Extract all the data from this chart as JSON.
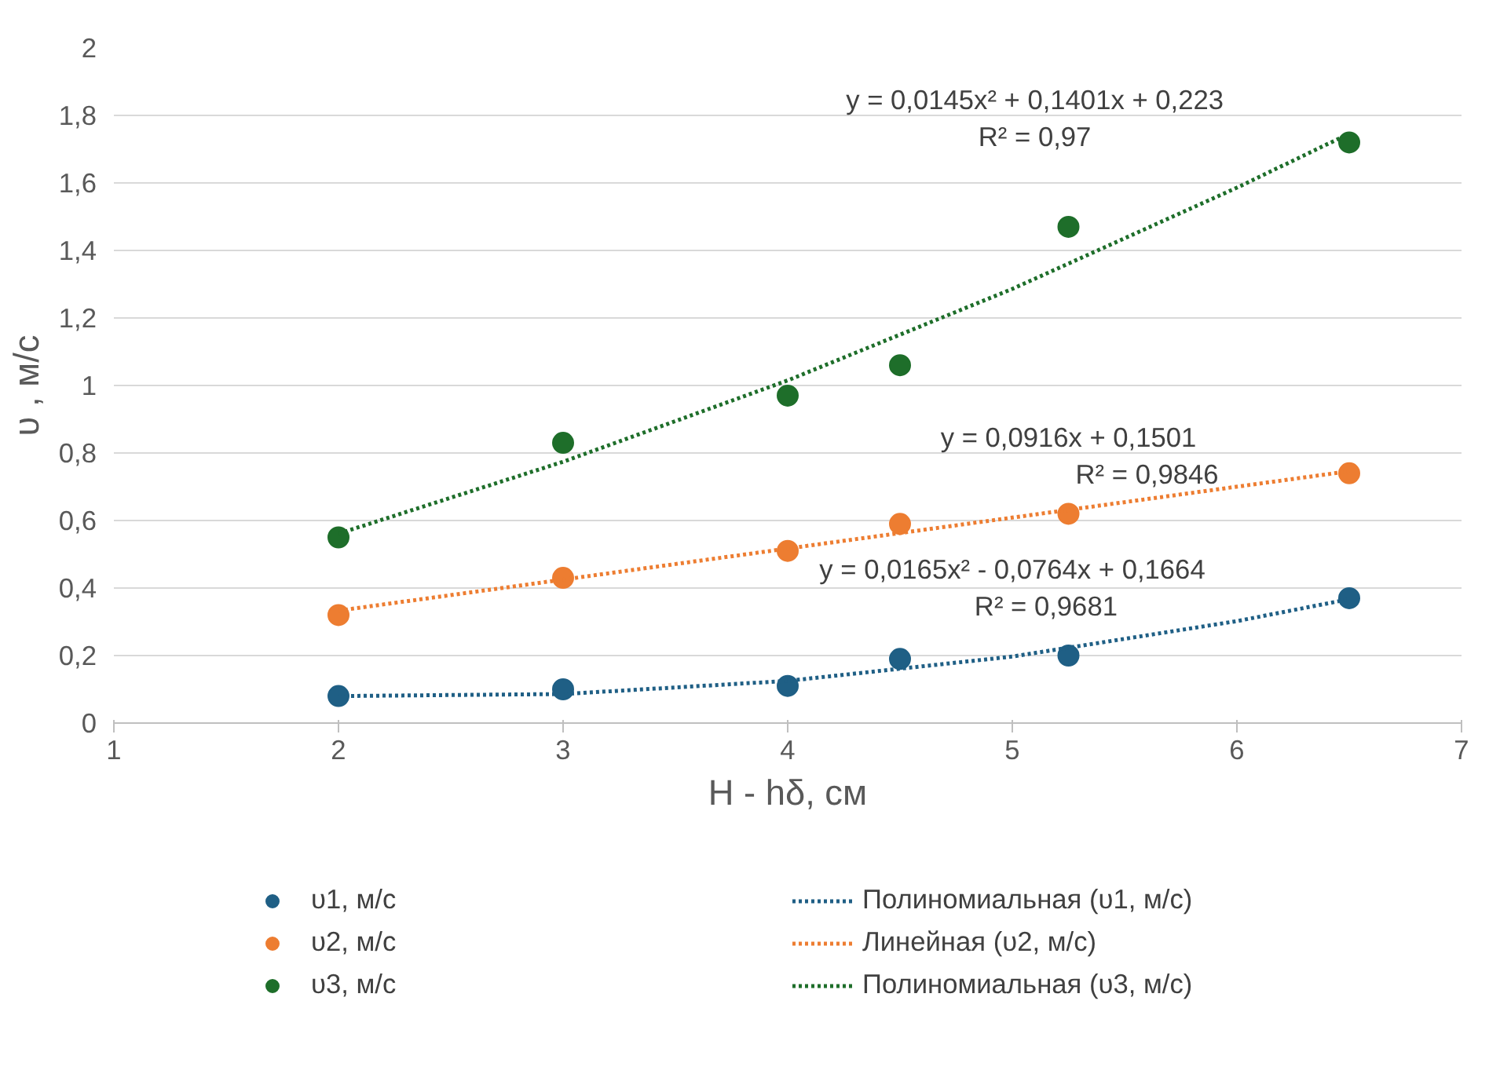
{
  "chart_data": {
    "type": "scatter",
    "xlabel": "H - hδ, см",
    "ylabel": "υ , м/с",
    "xlim": [
      1,
      7
    ],
    "xticks": [
      1,
      2,
      3,
      4,
      5,
      6,
      7
    ],
    "ylim": [
      0,
      2
    ],
    "yticks": [
      0,
      {
        "value": 0.2,
        "label": "0,2"
      },
      {
        "value": 0.4,
        "label": "0,4"
      },
      {
        "value": 0.6,
        "label": "0,6"
      },
      {
        "value": 0.8,
        "label": "0,8"
      },
      1,
      {
        "value": 1.2,
        "label": "1,2"
      },
      {
        "value": 1.4,
        "label": "1,4"
      },
      {
        "value": 1.6,
        "label": "1,6"
      },
      {
        "value": 1.8,
        "label": "1,8"
      },
      2
    ],
    "grid": "y",
    "legend": "bottom",
    "series": [
      {
        "name": "υ1, м/с",
        "marker": "circle",
        "color": "#1f5f85",
        "x": [
          2,
          3,
          4,
          4.5,
          5.25,
          6.5
        ],
        "values": [
          0.08,
          0.1,
          0.11,
          0.19,
          0.2,
          0.37
        ]
      },
      {
        "name": "υ2, м/с",
        "marker": "circle",
        "color": "#ed7d31",
        "x": [
          2,
          3,
          4,
          4.5,
          5.25,
          6.5
        ],
        "values": [
          0.32,
          0.43,
          0.51,
          0.59,
          0.62,
          0.74
        ]
      },
      {
        "name": "υ3, м/с",
        "marker": "circle",
        "color": "#1e6e2a",
        "x": [
          2,
          3,
          4,
          4.5,
          5.25,
          6.5
        ],
        "values": [
          0.55,
          0.83,
          0.97,
          1.06,
          1.47,
          1.72
        ]
      },
      {
        "name": "Полиномиальная (υ1, м/с)",
        "type": "line",
        "marker": "none",
        "line_style": "dotted",
        "color": "#1f5f85",
        "x": [
          2,
          3,
          4,
          5,
          6,
          6.5
        ],
        "values": [
          0.08,
          0.086,
          0.125,
          0.197,
          0.302,
          0.367
        ]
      },
      {
        "name": "Линейная (υ2, м/с)",
        "type": "line",
        "marker": "none",
        "line_style": "dotted",
        "color": "#ed7d31",
        "x": [
          2,
          4,
          6.5
        ],
        "values": [
          0.333,
          0.517,
          0.746
        ]
      },
      {
        "name": "Полиномиальная (υ3, м/с)",
        "type": "line",
        "marker": "none",
        "line_style": "dotted",
        "color": "#1e6e2a",
        "x": [
          2,
          3,
          4,
          5,
          6,
          6.5
        ],
        "values": [
          0.561,
          0.774,
          1.015,
          1.286,
          1.586,
          1.746
        ]
      }
    ],
    "annotations": [
      "y = 0,0145x² + 0,1401x + 0,223",
      "R² = 0,97",
      "y = 0,0916x + 0,1501",
      "R² = 0,9846",
      "y = 0,0165x² - 0,0764x + 0,1664",
      "R² = 0,9681"
    ]
  }
}
